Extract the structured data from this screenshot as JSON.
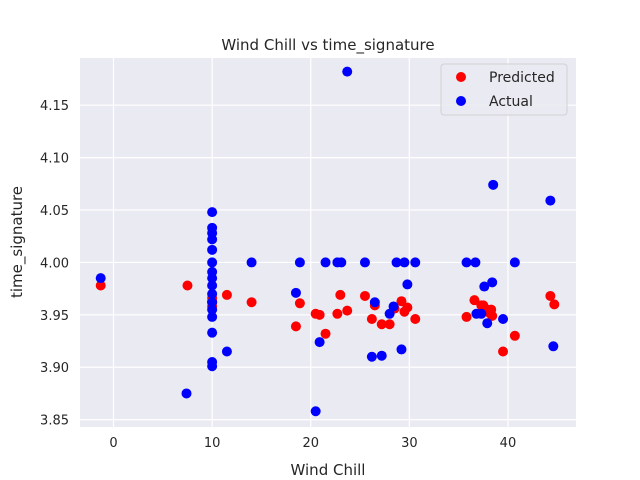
{
  "chart_data": {
    "type": "scatter",
    "title": "Wind Chill vs time_signature",
    "xlabel": "Wind Chill",
    "ylabel": "time_signature",
    "xlim": [
      -3.4,
      46.9
    ],
    "ylim": [
      3.843,
      4.195
    ],
    "xticks": [
      0,
      10,
      20,
      30,
      40
    ],
    "yticks": [
      3.85,
      3.9,
      3.95,
      4.0,
      4.05,
      4.1,
      4.15
    ],
    "ytick_labels": [
      "3.85",
      "3.90",
      "3.95",
      "4.00",
      "4.05",
      "4.10",
      "4.15"
    ],
    "grid": true,
    "legend_position": "top-right",
    "series": [
      {
        "name": "Predicted",
        "color": "#ff0000",
        "points": [
          [
            -1.3,
            3.978
          ],
          [
            7.5,
            3.978
          ],
          [
            10,
            3.962
          ],
          [
            10,
            3.966
          ],
          [
            10,
            3.958
          ],
          [
            10,
            3.963
          ],
          [
            11.5,
            3.969
          ],
          [
            14,
            3.962
          ],
          [
            18.5,
            3.939
          ],
          [
            18.9,
            3.961
          ],
          [
            20.5,
            3.951
          ],
          [
            20.9,
            3.95
          ],
          [
            21.5,
            3.932
          ],
          [
            22.7,
            3.951
          ],
          [
            23,
            3.969
          ],
          [
            23.7,
            3.954
          ],
          [
            25.5,
            3.968
          ],
          [
            26.2,
            3.946
          ],
          [
            26.5,
            3.959
          ],
          [
            27.2,
            3.941
          ],
          [
            28,
            3.941
          ],
          [
            28.5,
            3.956
          ],
          [
            29.2,
            3.963
          ],
          [
            29.5,
            3.953
          ],
          [
            29.8,
            3.957
          ],
          [
            30.6,
            3.946
          ],
          [
            35.8,
            3.948
          ],
          [
            36.6,
            3.964
          ],
          [
            37.3,
            3.959
          ],
          [
            37.5,
            3.959
          ],
          [
            37.7,
            3.956
          ],
          [
            38.1,
            3.952
          ],
          [
            38.3,
            3.955
          ],
          [
            38.4,
            3.949
          ],
          [
            39.5,
            3.915
          ],
          [
            40.7,
            3.93
          ],
          [
            44.3,
            3.968
          ],
          [
            44.7,
            3.96
          ]
        ]
      },
      {
        "name": "Actual",
        "color": "#0000ff",
        "points": [
          [
            -1.3,
            3.985
          ],
          [
            7.4,
            3.875
          ],
          [
            10,
            4.048
          ],
          [
            10,
            4.033
          ],
          [
            10,
            4.028
          ],
          [
            10,
            4.022
          ],
          [
            10,
            4.012
          ],
          [
            10,
            4.0
          ],
          [
            10,
            3.991
          ],
          [
            10,
            3.985
          ],
          [
            10,
            3.978
          ],
          [
            10,
            3.97
          ],
          [
            10,
            3.962
          ],
          [
            10,
            3.955
          ],
          [
            10,
            3.948
          ],
          [
            10,
            3.933
          ],
          [
            10,
            3.905
          ],
          [
            10,
            3.901
          ],
          [
            11.5,
            3.915
          ],
          [
            14,
            4.0
          ],
          [
            18.5,
            3.971
          ],
          [
            18.9,
            4.0
          ],
          [
            20.5,
            3.858
          ],
          [
            20.9,
            3.924
          ],
          [
            21.5,
            4.0
          ],
          [
            22.7,
            4.0
          ],
          [
            23.1,
            4.0
          ],
          [
            23.7,
            4.182
          ],
          [
            25.5,
            4.0
          ],
          [
            26.2,
            3.91
          ],
          [
            26.5,
            3.962
          ],
          [
            27.2,
            3.911
          ],
          [
            28,
            3.951
          ],
          [
            28.4,
            3.958
          ],
          [
            28.7,
            4.0
          ],
          [
            29.2,
            3.917
          ],
          [
            29.5,
            4.0
          ],
          [
            29.8,
            3.979
          ],
          [
            30.6,
            4.0
          ],
          [
            35.8,
            4.0
          ],
          [
            36.7,
            4.0
          ],
          [
            36.8,
            3.951
          ],
          [
            37.3,
            3.951
          ],
          [
            37.6,
            3.977
          ],
          [
            37.9,
            3.942
          ],
          [
            38.4,
            3.981
          ],
          [
            38.5,
            4.074
          ],
          [
            39.5,
            3.946
          ],
          [
            40.7,
            4.0
          ],
          [
            44.3,
            4.059
          ],
          [
            44.6,
            3.92
          ]
        ]
      }
    ]
  },
  "theme": {
    "plot_background": "#eaeaf2",
    "grid_color": "#ffffff",
    "text_color": "#262626"
  }
}
